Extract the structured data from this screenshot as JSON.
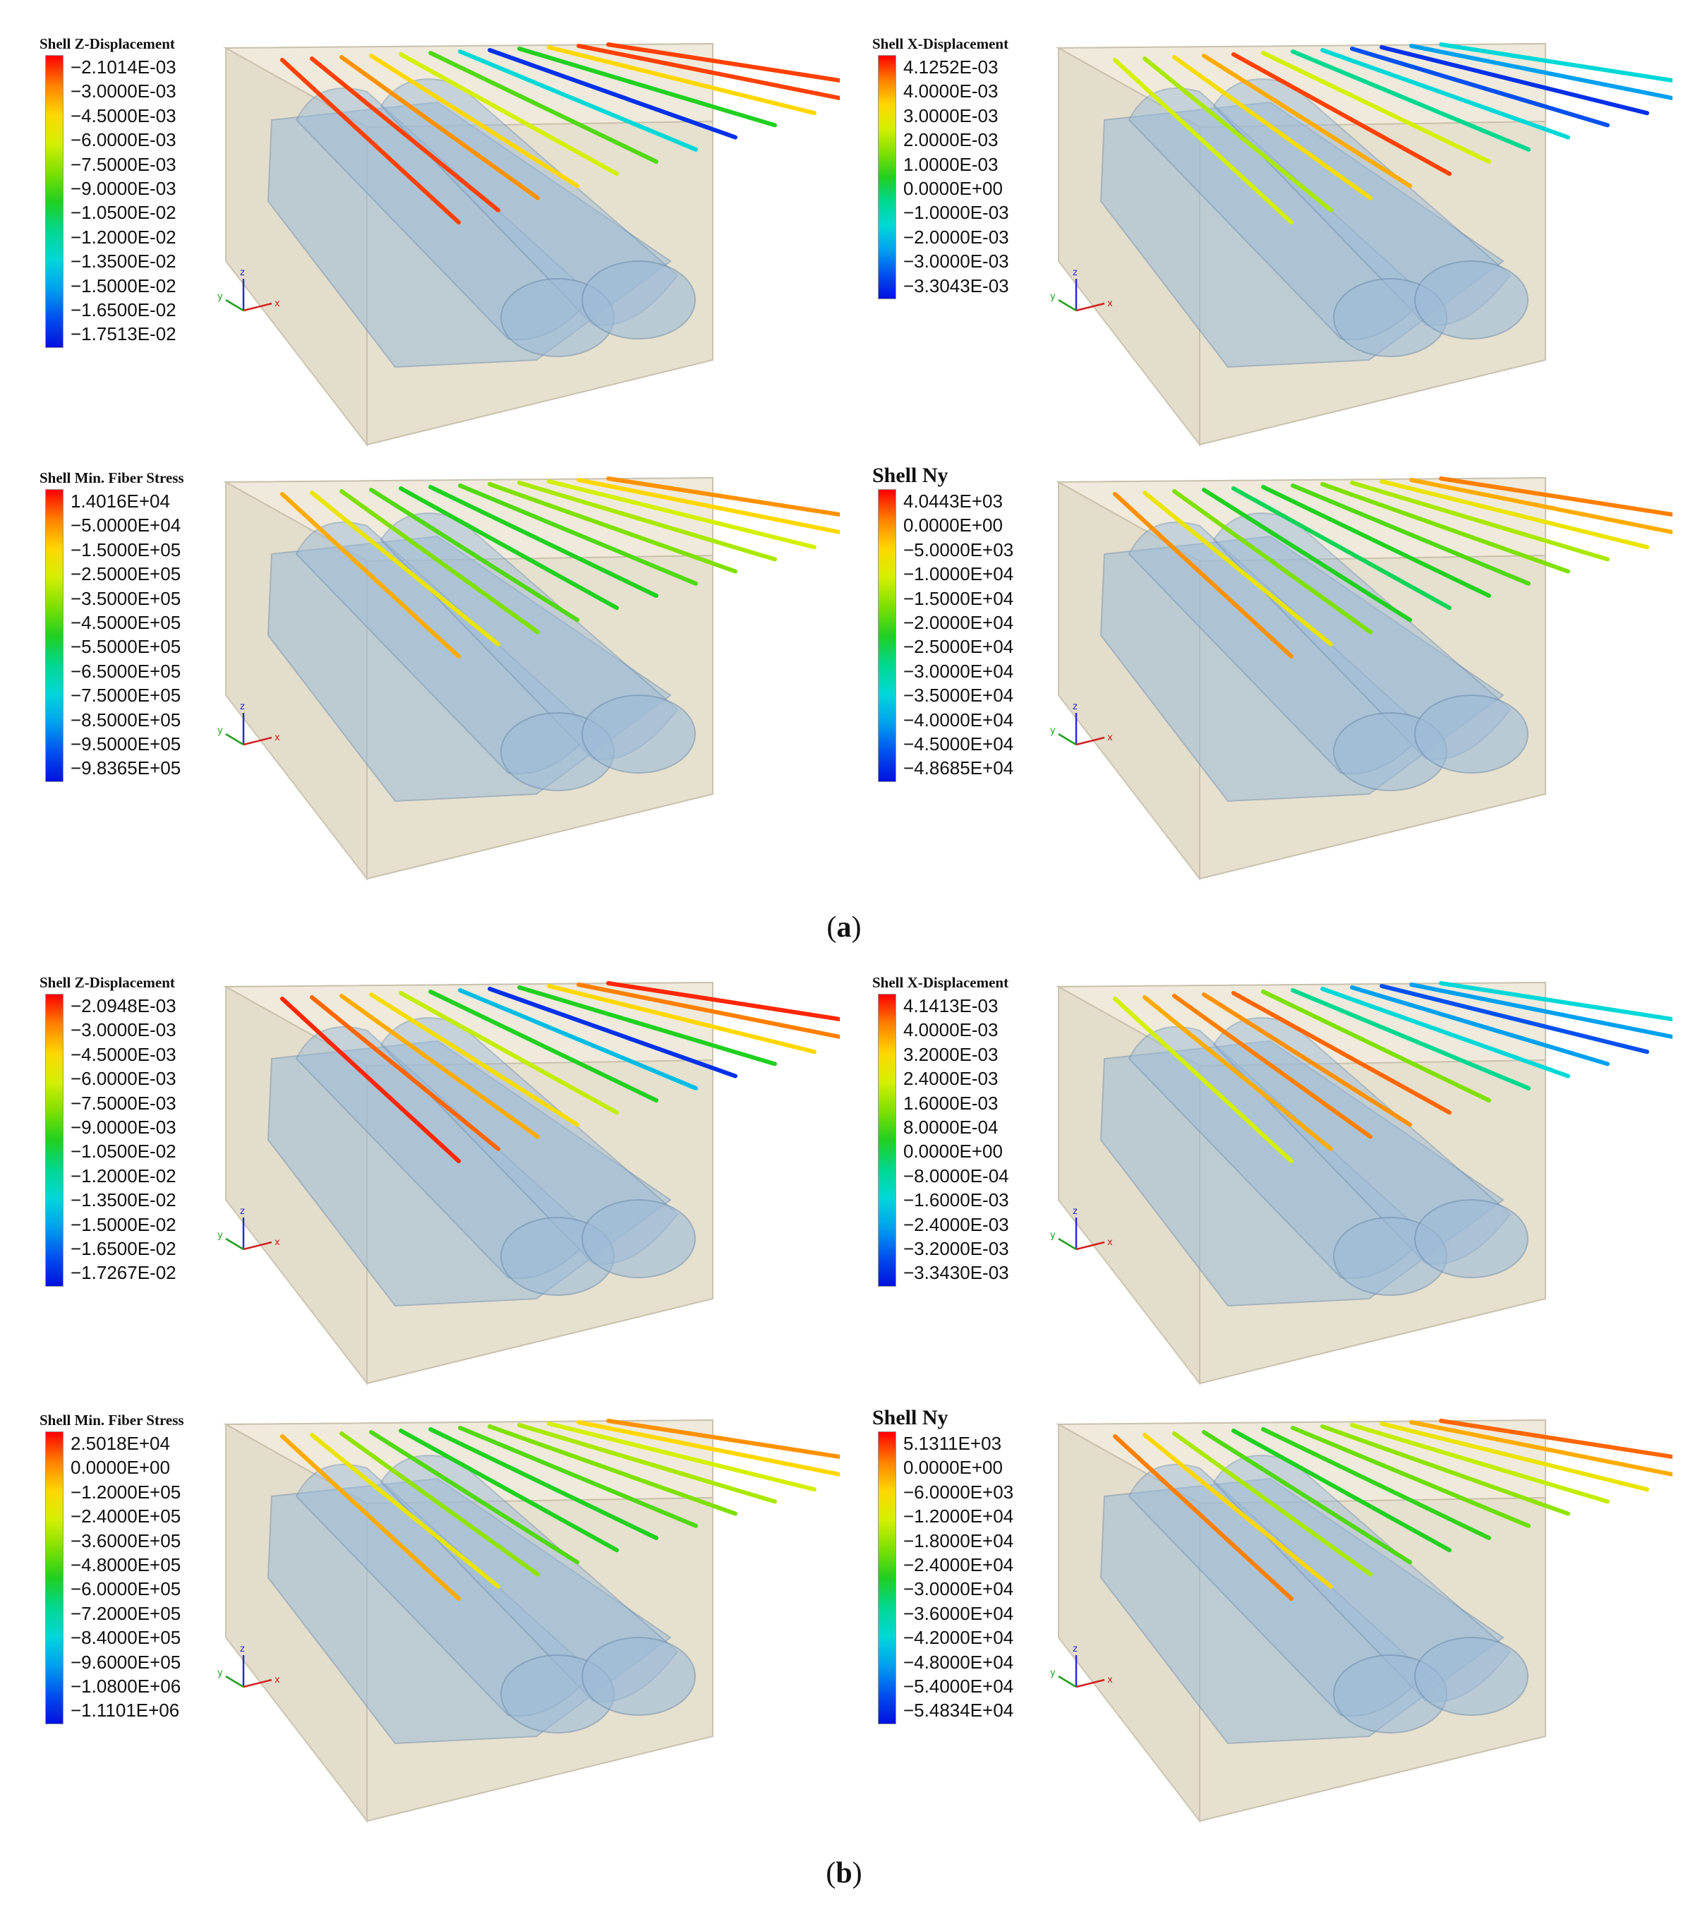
{
  "figure": {
    "captions": [
      {
        "paren_open": "(",
        "letter": "a",
        "paren_close": ")"
      },
      {
        "paren_open": "(",
        "letter": "b",
        "paren_close": ")"
      }
    ],
    "axis_triad": {
      "x": "x",
      "y": "y",
      "z": "z"
    },
    "panels": [
      {
        "title": "Shell Z-Displacement",
        "big": false,
        "ticks": [
          "−2.1014E-03",
          "−3.0000E-03",
          "−4.5000E-03",
          "−6.0000E-03",
          "−7.5000E-03",
          "−9.0000E-03",
          "−1.0500E-02",
          "−1.2000E-02",
          "−1.3500E-02",
          "−1.5000E-02",
          "−1.6500E-02",
          "−1.7513E-02"
        ],
        "line_levels": [
          0.95,
          0.95,
          0.88,
          0.8,
          0.7,
          0.55,
          0.3,
          0.05,
          0.5,
          0.8,
          0.95,
          0.95
        ]
      },
      {
        "title": "Shell X-Displacement",
        "big": false,
        "ticks": [
          "4.1252E-03",
          "4.0000E-03",
          "3.0000E-03",
          "2.0000E-03",
          "1.0000E-03",
          "0.0000E+00",
          "−1.0000E-03",
          "−2.0000E-03",
          "−3.0000E-03",
          "−3.3043E-03"
        ],
        "line_levels": [
          0.7,
          0.65,
          0.78,
          0.85,
          0.95,
          0.7,
          0.4,
          0.3,
          0.1,
          0.05,
          0.2,
          0.3
        ]
      },
      {
        "title": "Shell Min. Fiber Stress",
        "big": false,
        "ticks": [
          "1.4016E+04",
          "−5.0000E+04",
          "−1.5000E+05",
          "−2.5000E+05",
          "−3.5000E+05",
          "−4.5000E+05",
          "−5.5000E+05",
          "−6.5000E+05",
          "−7.5000E+05",
          "−8.5000E+05",
          "−9.5000E+05",
          "−9.8365E+05"
        ],
        "line_levels": [
          0.85,
          0.75,
          0.6,
          0.55,
          0.5,
          0.5,
          0.55,
          0.6,
          0.65,
          0.7,
          0.8,
          0.88
        ]
      },
      {
        "title": "Shell Ny",
        "big": true,
        "ticks": [
          "4.0443E+03",
          "0.0000E+00",
          "−5.0000E+03",
          "−1.0000E+04",
          "−1.5000E+04",
          "−2.0000E+04",
          "−2.5000E+04",
          "−3.0000E+04",
          "−3.5000E+04",
          "−4.0000E+04",
          "−4.5000E+04",
          "−4.8685E+04"
        ],
        "line_levels": [
          0.88,
          0.75,
          0.6,
          0.5,
          0.45,
          0.5,
          0.55,
          0.6,
          0.65,
          0.75,
          0.85,
          0.9
        ]
      },
      {
        "title": "Shell Z-Displacement",
        "big": false,
        "ticks": [
          "−2.0948E-03",
          "−3.0000E-03",
          "−4.5000E-03",
          "−6.0000E-03",
          "−7.5000E-03",
          "−9.0000E-03",
          "−1.0500E-02",
          "−1.2000E-02",
          "−1.3500E-02",
          "−1.5000E-02",
          "−1.6500E-02",
          "−1.7267E-02"
        ],
        "line_levels": [
          0.97,
          0.92,
          0.85,
          0.78,
          0.68,
          0.5,
          0.25,
          0.05,
          0.5,
          0.8,
          0.9,
          0.97
        ]
      },
      {
        "title": "Shell X-Displacement",
        "big": false,
        "ticks": [
          "4.1413E-03",
          "4.0000E-03",
          "3.2000E-03",
          "2.4000E-03",
          "1.6000E-03",
          "8.0000E-04",
          "0.0000E+00",
          "−8.0000E-04",
          "−1.6000E-03",
          "−2.4000E-03",
          "−3.2000E-03",
          "−3.3430E-03"
        ],
        "line_levels": [
          0.7,
          0.85,
          0.9,
          0.88,
          0.92,
          0.6,
          0.4,
          0.3,
          0.2,
          0.1,
          0.2,
          0.3
        ]
      },
      {
        "title": "Shell Min. Fiber Stress",
        "big": false,
        "ticks": [
          "2.5018E+04",
          "0.0000E+00",
          "−1.2000E+05",
          "−2.4000E+05",
          "−3.6000E+05",
          "−4.8000E+05",
          "−6.0000E+05",
          "−7.2000E+05",
          "−8.4000E+05",
          "−9.6000E+05",
          "−1.0800E+06",
          "−1.1101E+06"
        ],
        "line_levels": [
          0.85,
          0.75,
          0.62,
          0.55,
          0.5,
          0.5,
          0.55,
          0.6,
          0.65,
          0.7,
          0.8,
          0.88
        ]
      },
      {
        "title": "Shell Ny",
        "big": true,
        "ticks": [
          "5.1311E+03",
          "0.0000E+00",
          "−6.0000E+03",
          "−1.2000E+04",
          "−1.8000E+04",
          "−2.4000E+04",
          "−3.0000E+04",
          "−3.6000E+04",
          "−4.2000E+04",
          "−4.8000E+04",
          "−5.4000E+04",
          "−5.4834E+04"
        ],
        "line_levels": [
          0.9,
          0.8,
          0.65,
          0.55,
          0.5,
          0.52,
          0.58,
          0.62,
          0.68,
          0.75,
          0.85,
          0.92
        ]
      }
    ],
    "colors": {
      "box_fill": "#e9e4d4",
      "box_edge": "#c9c2ad",
      "tunnel": "#9dbcd8",
      "tunnel_edge": "#6f8fb0",
      "colormap": [
        "#ff0000",
        "#ff7f00",
        "#ffd700",
        "#d4f000",
        "#7fe000",
        "#20d020",
        "#00d890",
        "#00d8d8",
        "#00a0f0",
        "#0050f0",
        "#0010e0"
      ]
    }
  }
}
